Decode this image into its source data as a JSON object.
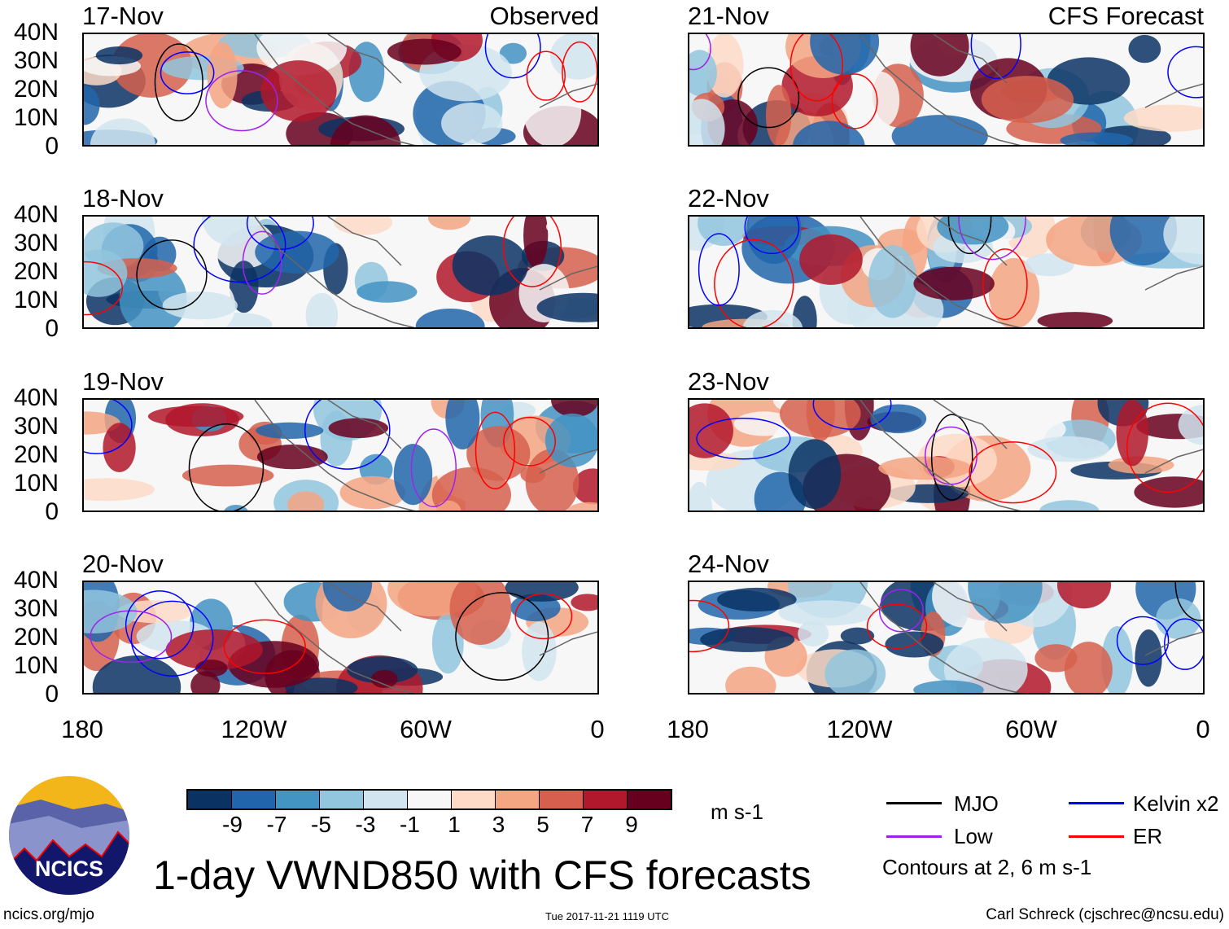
{
  "header": {
    "left_label": "Observed",
    "right_label": "CFS Forecast"
  },
  "panels": [
    {
      "date": "17-Nov",
      "group": "observed"
    },
    {
      "date": "18-Nov",
      "group": "observed"
    },
    {
      "date": "19-Nov",
      "group": "observed"
    },
    {
      "date": "20-Nov",
      "group": "observed"
    },
    {
      "date": "21-Nov",
      "group": "forecast"
    },
    {
      "date": "22-Nov",
      "group": "forecast"
    },
    {
      "date": "23-Nov",
      "group": "forecast"
    },
    {
      "date": "24-Nov",
      "group": "forecast"
    }
  ],
  "y_ticks": [
    "40N",
    "30N",
    "20N",
    "10N",
    "0"
  ],
  "x_ticks": [
    "180",
    "120W",
    "60W",
    "0"
  ],
  "colorbar": {
    "colors": [
      "#0a3364",
      "#2166ac",
      "#4393c3",
      "#92c5de",
      "#d1e5f0",
      "#f7f7f7",
      "#fddbc7",
      "#f4a582",
      "#d6604d",
      "#b2182b",
      "#67001f"
    ],
    "ticks": [
      "-9",
      "-7",
      "-5",
      "-3",
      "-1",
      "1",
      "3",
      "5",
      "7",
      "9"
    ],
    "units": "m s-1"
  },
  "legend": {
    "items": [
      {
        "label": "MJO",
        "color": "#000000"
      },
      {
        "label": "Kelvin x2",
        "color": "#0000ff"
      },
      {
        "label": "Low",
        "color": "#a020f0"
      },
      {
        "label": "ER",
        "color": "#ff0000"
      }
    ],
    "note": "Contours at 2, 6 m s-1"
  },
  "title": "1-day VWND850 with CFS forecasts",
  "logo_text": "NCICS",
  "footer": {
    "left": "ncics.org/mjo",
    "center": "Tue 2017-11-21 1119 UTC",
    "right": "Carl Schreck (cjschrec@ncsu.edu)"
  }
}
